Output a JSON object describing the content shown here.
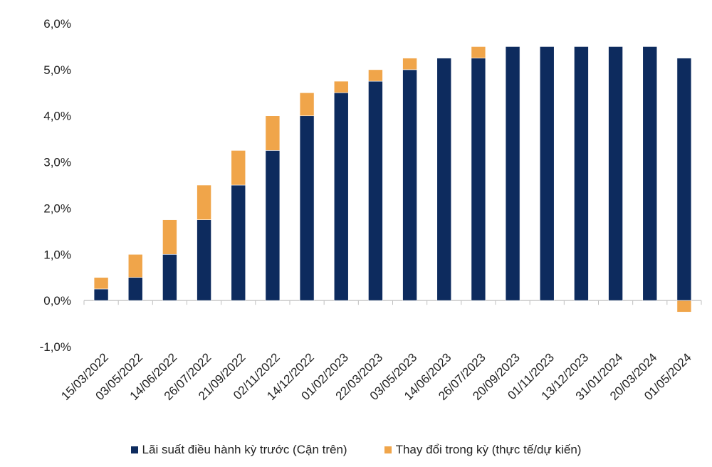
{
  "chart_data": {
    "type": "bar",
    "stacked": true,
    "categories": [
      "15/03/2022",
      "03/05/2022",
      "14/06/2022",
      "26/07/2022",
      "21/09/2022",
      "02/11/2022",
      "14/12/2022",
      "01/02/2023",
      "22/03/2023",
      "03/05/2023",
      "14/06/2023",
      "26/07/2023",
      "20/09/2023",
      "01/11/2023",
      "13/12/2023",
      "31/01/2024",
      "20/03/2024",
      "01/05/2024"
    ],
    "series": [
      {
        "name": "Lãi suất điều hành kỳ trước (Cận trên)",
        "color": "#0d2b5e",
        "values": [
          0.25,
          0.5,
          1.0,
          1.75,
          2.5,
          3.25,
          4.0,
          4.5,
          4.75,
          5.0,
          5.25,
          5.25,
          5.5,
          5.5,
          5.5,
          5.5,
          5.5,
          5.25
        ]
      },
      {
        "name": "Thay đổi trong kỳ (thực tế/dự kiến)",
        "color": "#f0a54a",
        "values": [
          0.25,
          0.5,
          0.75,
          0.75,
          0.75,
          0.75,
          0.5,
          0.25,
          0.25,
          0.25,
          0,
          0.25,
          0,
          0,
          0,
          0,
          0,
          -0.25
        ]
      }
    ],
    "ylim": [
      -1,
      6
    ],
    "yticks": [
      -1,
      0,
      1,
      2,
      3,
      4,
      5,
      6
    ],
    "ytick_labels": [
      "-1,0%",
      "0,0%",
      "1,0%",
      "2,0%",
      "3,0%",
      "4,0%",
      "5,0%",
      "6,0%"
    ],
    "grid": false,
    "legend_position": "bottom"
  }
}
